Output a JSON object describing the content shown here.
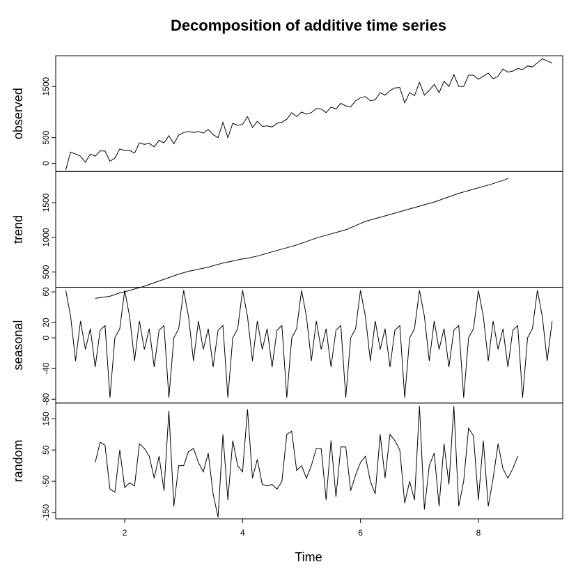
{
  "chart_data": {
    "type": "line",
    "title": "Decomposition of additive time series",
    "xlabel": "Time",
    "xlim": [
      0.83,
      9.43
    ],
    "xticks": [
      2,
      4,
      6,
      8
    ],
    "panels": [
      {
        "name": "observed",
        "ylabel": "observed",
        "ylim": [
          -160,
          2100
        ],
        "yticks": [
          0,
          500,
          1500
        ],
        "x_start": 1.0,
        "values": [
          -130,
          220,
          180,
          140,
          20,
          180,
          140,
          240,
          240,
          40,
          100,
          280,
          250,
          250,
          200,
          400,
          370,
          390,
          320,
          450,
          400,
          540,
          380,
          550,
          600,
          620,
          600,
          620,
          590,
          660,
          560,
          500,
          800,
          500,
          780,
          740,
          760,
          910,
          700,
          820,
          720,
          730,
          710,
          780,
          800,
          860,
          990,
          910,
          1000,
          960,
          990,
          1070,
          1060,
          990,
          1100,
          1060,
          1170,
          1120,
          1100,
          1220,
          1280,
          1300,
          1220,
          1240,
          1380,
          1330,
          1420,
          1470,
          1480,
          1180,
          1380,
          1320,
          1580,
          1330,
          1420,
          1540,
          1380,
          1600,
          1500,
          1730,
          1500,
          1500,
          1720,
          1720,
          1640,
          1700,
          1760,
          1650,
          1700,
          1840,
          1780,
          1800,
          1850,
          1830,
          1900,
          1880,
          1960,
          2040,
          2000,
          1960
        ]
      },
      {
        "name": "trend",
        "ylabel": "trend",
        "ylim": [
          280,
          1950
        ],
        "yticks": [
          500,
          1000,
          1500
        ],
        "x_start": 1.5,
        "values": [
          120,
          130,
          140,
          150,
          175,
          200,
          215,
          235,
          255,
          275,
          295,
          320,
          345,
          370,
          395,
          420,
          445,
          470,
          490,
          510,
          525,
          540,
          555,
          570,
          590,
          610,
          630,
          645,
          660,
          675,
          690,
          700,
          715,
          730,
          750,
          770,
          790,
          810,
          830,
          850,
          870,
          890,
          915,
          940,
          965,
          990,
          1010,
          1030,
          1050,
          1070,
          1090,
          1110,
          1140,
          1170,
          1200,
          1230,
          1250,
          1270,
          1290,
          1310,
          1330,
          1350,
          1370,
          1390,
          1410,
          1430,
          1450,
          1470,
          1490,
          1510,
          1535,
          1560,
          1585,
          1610,
          1635,
          1655,
          1675,
          1695,
          1715,
          1735,
          1755,
          1775,
          1800,
          1820,
          1850
        ]
      },
      {
        "name": "seasonal",
        "ylabel": "seasonal",
        "ylim": [
          -85,
          66
        ],
        "yticks": [
          -80,
          -40,
          0,
          20,
          60
        ],
        "x_start": 1.0,
        "period": 12,
        "values": [
          62,
          28,
          -30,
          22,
          -15,
          12,
          -38,
          10,
          16,
          -78,
          0,
          12
        ]
      },
      {
        "name": "random",
        "ylabel": "random",
        "ylim": [
          -170,
          200
        ],
        "yticks": [
          -150,
          -50,
          50,
          150
        ],
        "x_start": 1.5,
        "values": [
          10,
          75,
          65,
          -75,
          -85,
          50,
          -70,
          -55,
          -65,
          70,
          55,
          30,
          -40,
          30,
          -80,
          175,
          -130,
          0,
          0,
          45,
          55,
          10,
          -20,
          40,
          -90,
          -165,
          100,
          -110,
          80,
          0,
          -20,
          180,
          -40,
          20,
          -60,
          -65,
          -60,
          -75,
          -50,
          100,
          110,
          -15,
          0,
          -40,
          0,
          55,
          55,
          -110,
          80,
          -100,
          60,
          60,
          -80,
          -30,
          10,
          30,
          -50,
          -90,
          100,
          -40,
          100,
          80,
          50,
          -120,
          -50,
          -110,
          190,
          -140,
          0,
          40,
          -130,
          70,
          -60,
          190,
          -130,
          -50,
          120,
          95,
          -110,
          80,
          -130,
          -40,
          70,
          -10,
          -40,
          -10,
          30
        ]
      }
    ]
  }
}
